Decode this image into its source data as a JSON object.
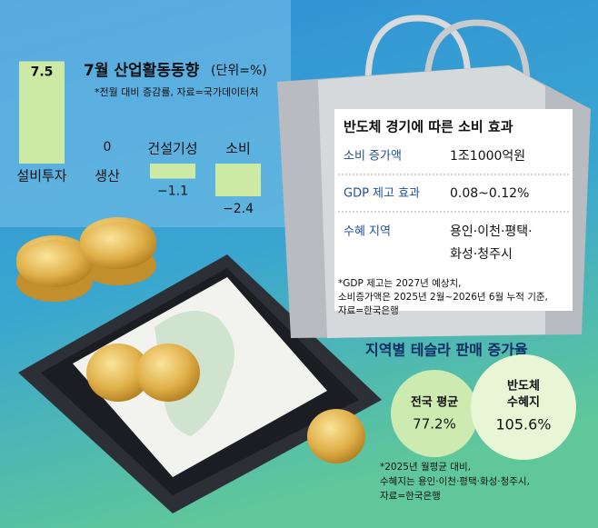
{
  "chart_data": {
    "type": "bar",
    "title": "7월 산업활동동향",
    "subtitle": "(단위=%)",
    "note": "*전월 대비 증감률, 자료=국가데이터처",
    "categories": [
      "설비투자",
      "생산",
      "건설기성",
      "소비"
    ],
    "values": [
      7.5,
      0,
      -1.1,
      -2.4
    ],
    "value_labels": [
      "7.5",
      "0",
      "−1.1",
      "−2.4"
    ],
    "color": "#cdeaa4"
  },
  "bag": {
    "title": "반도체 경기에 따른 소비 효과",
    "rows": [
      [
        "소비 증가액",
        "1조1000억원"
      ],
      [
        "GDP 제고 효과",
        "0.08~0.12%"
      ],
      [
        "수혜 지역",
        "용인·이천·평택·",
        "화성·청주시"
      ]
    ],
    "note": [
      "*GDP 제고는 2027년 예상치,",
      "소비증가액은 2025년 2월~2026년 6월 누적 기준,",
      "자료=한국은행"
    ]
  },
  "tesla": {
    "title": "지역별 테슬라 판매 증가율",
    "circles": [
      [
        "전국 평균",
        "77.2%"
      ],
      [
        "반도체",
        "수혜지",
        "105.6%"
      ]
    ],
    "note": [
      "*2025년 월평균 대비,",
      "수혜지는 용인·이천·평택·화성·청주시,",
      "자료=한국은행"
    ]
  }
}
